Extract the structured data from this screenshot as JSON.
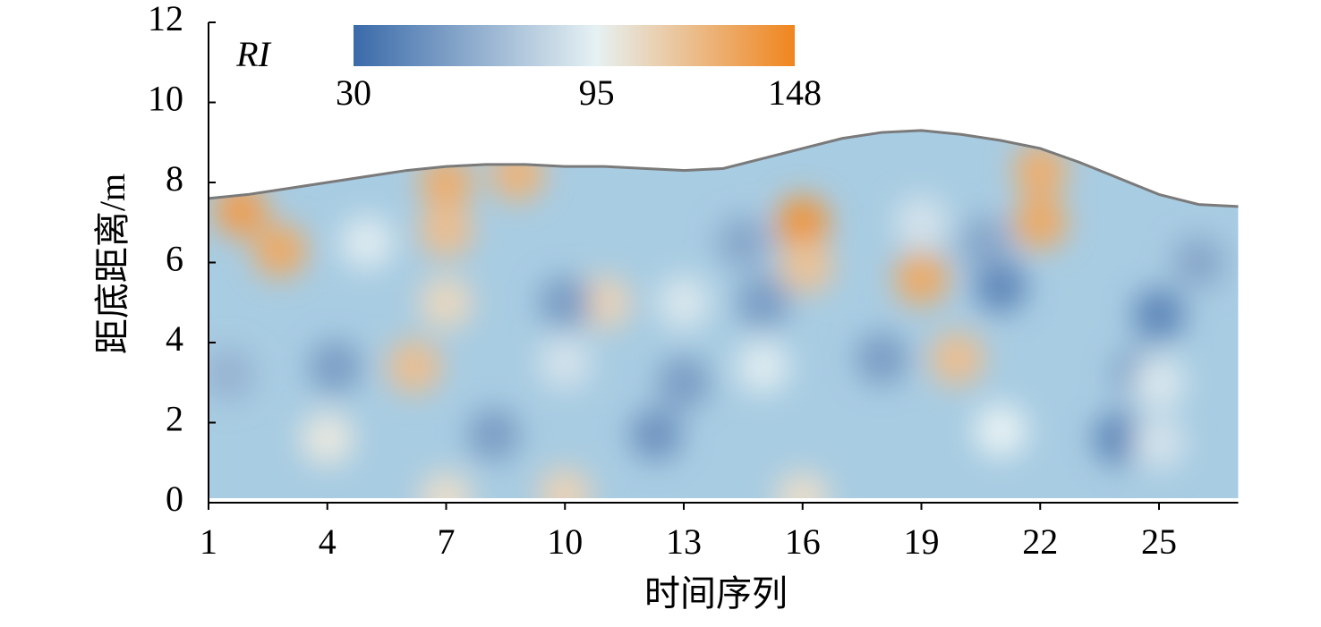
{
  "chart_data": {
    "type": "contour",
    "xlabel": "时间序列",
    "ylabel": "距底距离/m",
    "xlim": [
      1,
      27
    ],
    "xticks": [
      1,
      4,
      7,
      10,
      13,
      16,
      19,
      22,
      25
    ],
    "ylim": [
      0,
      12
    ],
    "yticks": [
      0,
      2,
      4,
      6,
      8,
      10,
      12
    ],
    "surface": {
      "x": [
        1,
        2,
        3,
        4,
        5,
        6,
        7,
        8,
        9,
        10,
        11,
        12,
        13,
        14,
        15,
        16,
        17,
        18,
        19,
        20,
        21,
        22,
        23,
        24,
        25,
        26,
        27
      ],
      "y": [
        7.6,
        7.7,
        7.85,
        8.0,
        8.15,
        8.3,
        8.4,
        8.45,
        8.45,
        8.4,
        8.4,
        8.35,
        8.3,
        8.35,
        8.6,
        8.85,
        9.1,
        9.25,
        9.3,
        9.2,
        9.05,
        8.85,
        8.5,
        8.1,
        7.7,
        7.45,
        7.4
      ],
      "color": "#7a7a7a"
    },
    "points": {
      "x": [
        1.8,
        2.8,
        7,
        7,
        8.8,
        7,
        6.2,
        11,
        16,
        16.1,
        19,
        19.9,
        22,
        22,
        10,
        7,
        16,
        4,
        10,
        15,
        21,
        25,
        24,
        12.3,
        8.2,
        4.2,
        18,
        20.6,
        24.5,
        14.5,
        13,
        1.5,
        26,
        13,
        15,
        21,
        10,
        5,
        19,
        25,
        25
      ],
      "y": [
        7.3,
        6.3,
        8,
        6.8,
        8.2,
        5,
        3.4,
        5,
        7,
        5.9,
        5.6,
        3.6,
        8.3,
        7,
        0.2,
        0.1,
        0.1,
        1.6,
        5,
        5,
        5.4,
        4.7,
        1.6,
        1.7,
        1.7,
        3.4,
        3.6,
        6.5,
        3.2,
        6.5,
        3,
        3.2,
        6,
        5,
        3.4,
        1.8,
        3.5,
        6.5,
        7,
        1.5,
        3
      ],
      "values": [
        135,
        130,
        128,
        120,
        125,
        108,
        120,
        110,
        140,
        118,
        130,
        120,
        128,
        130,
        110,
        105,
        105,
        100,
        55,
        55,
        45,
        45,
        45,
        50,
        55,
        55,
        55,
        60,
        55,
        60,
        55,
        65,
        60,
        90,
        92,
        95,
        88,
        92,
        88,
        88,
        90
      ]
    },
    "colorbar": {
      "label": "RI",
      "lim": [
        30,
        148
      ],
      "ticks": [
        30,
        95,
        148
      ],
      "colors": [
        "#3a6aa9",
        "#e6f1f3",
        "#f0851e"
      ]
    }
  }
}
